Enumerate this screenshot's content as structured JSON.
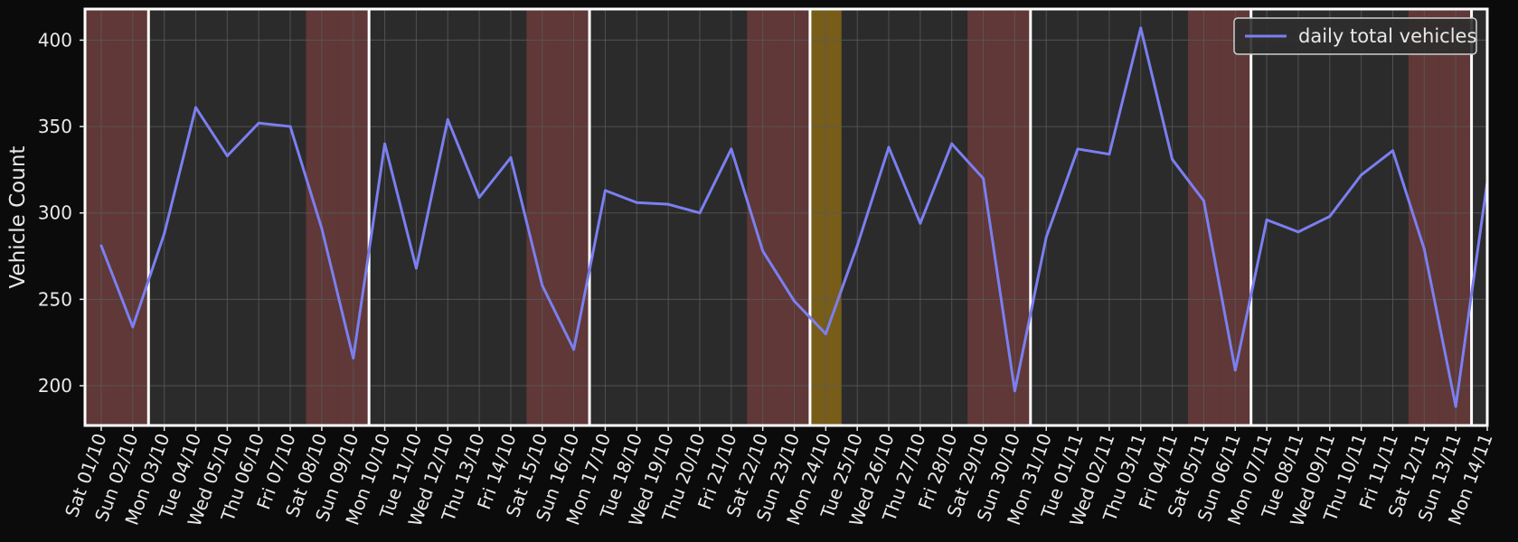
{
  "chart_data": {
    "type": "line",
    "title": "",
    "xlabel": "",
    "ylabel": "Vehicle Count",
    "ylim": [
      177,
      418
    ],
    "yticks": [
      200,
      250,
      300,
      350,
      400
    ],
    "grid": true,
    "legend_placement": "top-right",
    "categories": [
      "Sat 01/10",
      "Sun 02/10",
      "Mon 03/10",
      "Tue 04/10",
      "Wed 05/10",
      "Thu 06/10",
      "Fri 07/10",
      "Sat 08/10",
      "Sun 09/10",
      "Mon 10/10",
      "Tue 11/10",
      "Wed 12/10",
      "Thu 13/10",
      "Fri 14/10",
      "Sat 15/10",
      "Sun 16/10",
      "Mon 17/10",
      "Tue 18/10",
      "Wed 19/10",
      "Thu 20/10",
      "Fri 21/10",
      "Sat 22/10",
      "Sun 23/10",
      "Mon 24/10",
      "Tue 25/10",
      "Wed 26/10",
      "Thu 27/10",
      "Fri 28/10",
      "Sat 29/10",
      "Sun 30/10",
      "Mon 31/10",
      "Tue 01/11",
      "Wed 02/11",
      "Thu 03/11",
      "Fri 04/11",
      "Sat 05/11",
      "Sun 06/11",
      "Mon 07/11",
      "Tue 08/11",
      "Wed 09/11",
      "Thu 10/11",
      "Fri 11/11",
      "Sat 12/11",
      "Sun 13/11",
      "Mon 14/11"
    ],
    "series": [
      {
        "name": "daily total vehicles",
        "color": "#7b7ff0",
        "values": [
          281,
          234,
          288,
          361,
          333,
          352,
          350,
          291,
          216,
          340,
          268,
          354,
          309,
          332,
          258,
          221,
          313,
          306,
          305,
          300,
          337,
          278,
          249,
          230,
          281,
          338,
          294,
          340,
          320,
          197,
          286,
          337,
          334,
          407,
          331,
          307,
          209,
          296,
          289,
          298,
          322,
          336,
          279,
          188,
          318
        ]
      }
    ],
    "weekend_shading": {
      "color": "#c0504d",
      "categories": [
        "Sat 01/10",
        "Sun 02/10",
        "Sat 08/10",
        "Sun 09/10",
        "Sat 15/10",
        "Sun 16/10",
        "Sat 22/10",
        "Sun 23/10",
        "Sat 29/10",
        "Sun 30/10",
        "Sat 05/11",
        "Sun 06/11",
        "Sat 12/11",
        "Sun 13/11"
      ]
    },
    "holiday_shading": {
      "color": "#b8860b",
      "categories": [
        "Mon 24/10"
      ]
    },
    "week_separators": [
      "Mon 03/10",
      "Mon 10/10",
      "Mon 17/10",
      "Mon 24/10",
      "Mon 31/10",
      "Mon 07/11",
      "Mon 14/11"
    ],
    "colors": {
      "page_background": "#0b0b0b",
      "plot_background": "#2b2b2b",
      "grid": "#5a5a5a",
      "text": "#e8e8e8",
      "separator": "#ffffff"
    }
  }
}
